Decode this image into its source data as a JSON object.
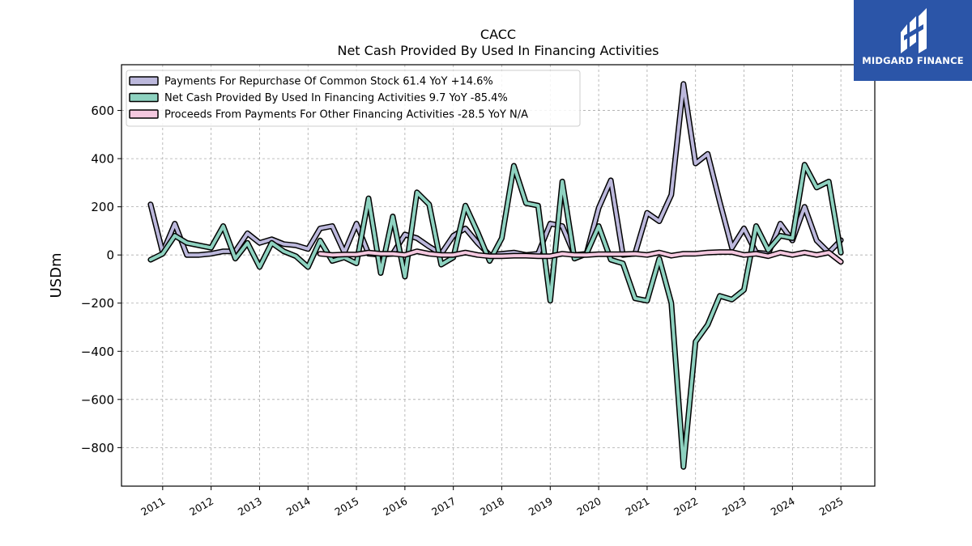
{
  "brand": {
    "name": "MIDGARD FINANCE",
    "color": "#2b55a8"
  },
  "chart_data": {
    "type": "line",
    "title": "CACC",
    "subtitle": "Net Cash Provided By Used In Financing Activities",
    "xlabel": "",
    "ylabel": "USDm",
    "xlim": [
      2010.15,
      2025.7
    ],
    "ylim": [
      -960,
      790
    ],
    "yticks": [
      -800,
      -600,
      -400,
      -200,
      0,
      200,
      400,
      600
    ],
    "ytick_labels": [
      "−800",
      "−600",
      "−400",
      "−200",
      "0",
      "200",
      "400",
      "600"
    ],
    "xticks": [
      2011,
      2012,
      2013,
      2014,
      2015,
      2016,
      2017,
      2018,
      2019,
      2020,
      2021,
      2022,
      2023,
      2024,
      2025
    ],
    "xtick_labels": [
      "2011",
      "2012",
      "2013",
      "2014",
      "2015",
      "2016",
      "2017",
      "2018",
      "2019",
      "2020",
      "2021",
      "2022",
      "2023",
      "2024",
      "2025"
    ],
    "grid": true,
    "legend_position": "top-left",
    "series": [
      {
        "name": "Payments For Repurchase Of Common Stock",
        "legend_label": "Payments For Repurchase Of Common Stock  61.4 YoY +14.6%",
        "color": "#bcb8dc",
        "x": [
          2010.75,
          2011.0,
          2011.25,
          2011.5,
          2011.75,
          2012.0,
          2012.25,
          2012.5,
          2012.75,
          2013.0,
          2013.25,
          2013.5,
          2013.75,
          2014.0,
          2014.25,
          2014.5,
          2014.75,
          2015.0,
          2015.25,
          2015.5,
          2015.75,
          2016.0,
          2016.25,
          2016.5,
          2016.75,
          2017.0,
          2017.25,
          2017.5,
          2017.75,
          2018.0,
          2018.25,
          2018.5,
          2018.75,
          2019.0,
          2019.25,
          2019.5,
          2019.75,
          2020.0,
          2020.25,
          2020.5,
          2020.75,
          2021.0,
          2021.25,
          2021.5,
          2021.75,
          2022.0,
          2022.25,
          2022.5,
          2022.75,
          2023.0,
          2023.25,
          2023.5,
          2023.75,
          2024.0,
          2024.25,
          2024.5,
          2024.75,
          2025.0
        ],
        "values": [
          210,
          10,
          130,
          0,
          0,
          5,
          15,
          15,
          90,
          50,
          65,
          45,
          40,
          25,
          110,
          120,
          10,
          130,
          5,
          0,
          5,
          85,
          70,
          35,
          5,
          80,
          110,
          50,
          0,
          5,
          10,
          0,
          5,
          130,
          120,
          0,
          5,
          195,
          310,
          0,
          5,
          175,
          140,
          250,
          710,
          380,
          420,
          220,
          30,
          110,
          10,
          5,
          130,
          60,
          200,
          60,
          10,
          61.4
        ]
      },
      {
        "name": "Net Cash Provided By Used In Financing Activities",
        "legend_label": "Net Cash Provided By Used In Financing Activities  9.7 YoY -85.4%",
        "color": "#8ed2c0",
        "x": [
          2010.75,
          2011.0,
          2011.25,
          2011.5,
          2011.75,
          2012.0,
          2012.25,
          2012.5,
          2012.75,
          2013.0,
          2013.25,
          2013.5,
          2013.75,
          2014.0,
          2014.25,
          2014.5,
          2014.75,
          2015.0,
          2015.25,
          2015.5,
          2015.75,
          2016.0,
          2016.25,
          2016.5,
          2016.75,
          2017.0,
          2017.25,
          2017.5,
          2017.75,
          2018.0,
          2018.25,
          2018.5,
          2018.75,
          2019.0,
          2019.25,
          2019.5,
          2019.75,
          2020.0,
          2020.25,
          2020.5,
          2020.75,
          2021.0,
          2021.25,
          2021.5,
          2021.75,
          2022.0,
          2022.25,
          2022.5,
          2022.75,
          2023.0,
          2023.25,
          2023.5,
          2023.75,
          2024.0,
          2024.25,
          2024.5,
          2024.75,
          2025.0
        ],
        "values": [
          -20,
          5,
          80,
          50,
          40,
          30,
          120,
          -15,
          50,
          -50,
          50,
          15,
          -5,
          -50,
          60,
          -25,
          -10,
          -35,
          235,
          -75,
          160,
          -90,
          260,
          210,
          -40,
          -10,
          205,
          95,
          -25,
          70,
          370,
          215,
          205,
          -190,
          305,
          -15,
          5,
          120,
          -20,
          -35,
          -180,
          -190,
          -15,
          -200,
          -880,
          -360,
          -290,
          -170,
          -185,
          -145,
          120,
          20,
          80,
          70,
          375,
          280,
          305,
          9.7
        ]
      },
      {
        "name": "Proceeds From Payments For Other Financing Activities",
        "legend_label": "Proceeds From Payments For Other Financing Activities  -28.5 YoY N/A",
        "color": "#f4c8df",
        "x": [
          2014.25,
          2014.5,
          2014.75,
          2015.0,
          2015.25,
          2015.5,
          2015.75,
          2016.0,
          2016.25,
          2016.5,
          2016.75,
          2017.0,
          2017.25,
          2017.5,
          2017.75,
          2018.0,
          2018.25,
          2018.5,
          2018.75,
          2019.0,
          2019.25,
          2019.5,
          2019.75,
          2020.0,
          2020.25,
          2020.5,
          2020.75,
          2021.0,
          2021.25,
          2021.5,
          2021.75,
          2022.0,
          2022.25,
          2022.5,
          2022.75,
          2023.0,
          2023.25,
          2023.5,
          2023.75,
          2024.0,
          2024.25,
          2024.5,
          2024.75,
          2025.0
        ],
        "values": [
          5,
          0,
          2,
          2,
          10,
          5,
          5,
          0,
          15,
          5,
          0,
          0,
          10,
          0,
          -5,
          -5,
          -3,
          -3,
          -5,
          -5,
          5,
          0,
          0,
          3,
          3,
          3,
          5,
          0,
          10,
          -3,
          5,
          5,
          10,
          12,
          12,
          0,
          5,
          -5,
          10,
          0,
          10,
          0,
          10,
          -28.5
        ]
      }
    ]
  }
}
